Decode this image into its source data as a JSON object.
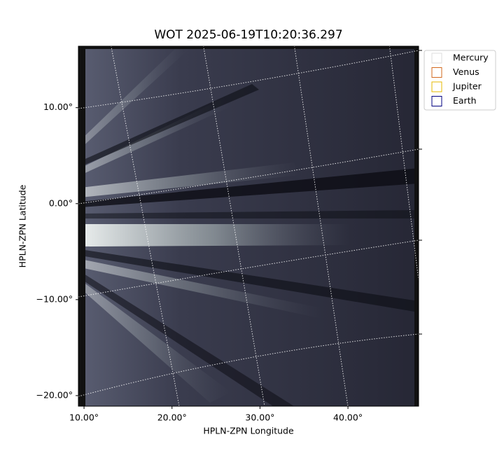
{
  "chart_data": {
    "type": "image",
    "title": "WOT 2025-06-19T10:20:36.297",
    "x_label": "HPLN-ZPN Longitude",
    "y_label": "HPLN-ZPN Latitude",
    "xlim": [
      9.36,
      48.03
    ],
    "ylim": [
      -21.1,
      16.4
    ],
    "xticks": [
      {
        "value": 10,
        "label": "10.00°"
      },
      {
        "value": 20,
        "label": "20.00°"
      },
      {
        "value": 30,
        "label": "30.00°"
      },
      {
        "value": 40,
        "label": "40.00°"
      }
    ],
    "yticks": [
      {
        "value": -20,
        "label": "−20.00°"
      },
      {
        "value": -10,
        "label": "−10.00°"
      },
      {
        "value": 0,
        "label": "0.00°"
      },
      {
        "value": 10,
        "label": "10.00°"
      }
    ],
    "legend": "upper right",
    "series": [
      {
        "name": "Mercury",
        "color": "#dddddd"
      },
      {
        "name": "Venus",
        "color": "#d2691e"
      },
      {
        "name": "Jupiter",
        "color": "#e6b800"
      },
      {
        "name": "Earth",
        "color": "#000080"
      }
    ]
  }
}
